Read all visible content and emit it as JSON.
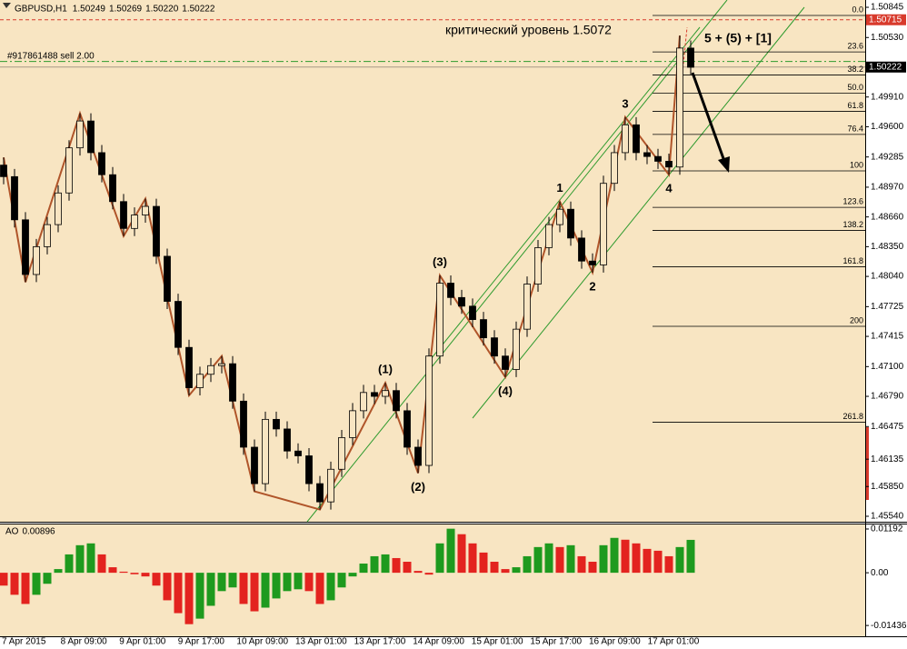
{
  "header": {
    "symbol": "GBPUSD,H1",
    "ohlc": [
      "1.50249",
      "1.50269",
      "1.50220",
      "1.50222"
    ]
  },
  "chart_data": [
    {
      "type": "candlestick",
      "x_labels": [
        "7 Apr 2015",
        "8 Apr 09:00",
        "9 Apr 01:00",
        "9 Apr 17:00",
        "10 Apr 09:00",
        "13 Apr 01:00",
        "13 Apr 17:00",
        "14 Apr 09:00",
        "15 Apr 01:00",
        "15 Apr 17:00",
        "16 Apr 09:00",
        "17 Apr 01:00"
      ],
      "open": [
        1.492,
        1.4908,
        1.4863,
        1.4806,
        1.4835,
        1.4858,
        1.4891,
        1.4938,
        1.4966,
        1.4933,
        1.491,
        1.4882,
        1.4854,
        1.4868,
        1.4877,
        1.4825,
        1.4778,
        1.473,
        1.4688,
        1.4702,
        1.4711,
        1.4713,
        1.4674,
        1.4626,
        1.4588,
        1.4655,
        1.4645,
        1.4622,
        1.4617,
        1.4588,
        1.4569,
        1.4603,
        1.4636,
        1.4664,
        1.4683,
        1.4679,
        1.4685,
        1.4664,
        1.4626,
        1.4607,
        1.4721,
        1.4797,
        1.4782,
        1.4773,
        1.4759,
        1.474,
        1.4721,
        1.4707,
        1.4749,
        1.4796,
        1.4834,
        1.4858,
        1.4874,
        1.4844,
        1.482,
        1.4816,
        1.4901,
        1.4933,
        1.4962,
        1.4933,
        1.4929,
        1.4924,
        1.4918,
        1.5042
      ],
      "high": [
        1.4928,
        1.4916,
        1.4871,
        1.4843,
        1.4866,
        1.4899,
        1.4946,
        1.4974,
        1.4974,
        1.4941,
        1.4918,
        1.489,
        1.4876,
        1.4885,
        1.4885,
        1.4833,
        1.4786,
        1.4738,
        1.471,
        1.4719,
        1.4721,
        1.4721,
        1.4682,
        1.4634,
        1.4663,
        1.4663,
        1.4653,
        1.463,
        1.4625,
        1.4596,
        1.4611,
        1.4644,
        1.4672,
        1.4691,
        1.4691,
        1.4693,
        1.4693,
        1.4672,
        1.4634,
        1.4729,
        1.4805,
        1.4805,
        1.479,
        1.4781,
        1.4767,
        1.4748,
        1.4729,
        1.4757,
        1.4804,
        1.4842,
        1.4866,
        1.4882,
        1.4882,
        1.4852,
        1.4828,
        1.4909,
        1.4941,
        1.497,
        1.497,
        1.4941,
        1.4937,
        1.4932,
        1.5055,
        1.505
      ],
      "low": [
        1.49,
        1.4855,
        1.4798,
        1.4798,
        1.4827,
        1.485,
        1.4883,
        1.493,
        1.4925,
        1.4902,
        1.4874,
        1.4846,
        1.4846,
        1.486,
        1.4817,
        1.477,
        1.4722,
        1.468,
        1.468,
        1.4694,
        1.4703,
        1.4666,
        1.4618,
        1.458,
        1.458,
        1.4637,
        1.4614,
        1.4609,
        1.458,
        1.4561,
        1.4561,
        1.4595,
        1.4628,
        1.4656,
        1.4671,
        1.4671,
        1.4656,
        1.4618,
        1.4599,
        1.4599,
        1.4713,
        1.4774,
        1.4765,
        1.4751,
        1.4732,
        1.4713,
        1.4699,
        1.4699,
        1.4741,
        1.4788,
        1.4826,
        1.485,
        1.4836,
        1.4812,
        1.4808,
        1.4808,
        1.4893,
        1.4925,
        1.4925,
        1.4921,
        1.4916,
        1.491,
        1.491,
        1.5014
      ],
      "close": [
        1.4908,
        1.4863,
        1.4806,
        1.4835,
        1.4858,
        1.4891,
        1.4938,
        1.4966,
        1.4933,
        1.491,
        1.4882,
        1.4854,
        1.4868,
        1.4877,
        1.4825,
        1.4778,
        1.473,
        1.4688,
        1.4702,
        1.4711,
        1.4713,
        1.4674,
        1.4626,
        1.4588,
        1.4655,
        1.4645,
        1.4622,
        1.4617,
        1.4588,
        1.4569,
        1.4603,
        1.4636,
        1.4664,
        1.4683,
        1.4679,
        1.4685,
        1.4664,
        1.4626,
        1.4607,
        1.4721,
        1.4797,
        1.4782,
        1.4773,
        1.4759,
        1.474,
        1.4721,
        1.4707,
        1.4749,
        1.4796,
        1.4834,
        1.4858,
        1.4874,
        1.4844,
        1.482,
        1.4816,
        1.4901,
        1.4933,
        1.4962,
        1.4933,
        1.4929,
        1.4924,
        1.4918,
        1.5042,
        1.5022
      ],
      "up_color": "#f8e5c2",
      "down_color": "#000000",
      "wick_color": "#000000",
      "ylim": [
        1.45483,
        1.50921
      ],
      "yticks": [
        1.50845,
        {
          "value": 1.5053,
          "label": "1.50530"
        },
        {
          "value": 1.4991,
          "label": "1.49910"
        },
        {
          "value": 1.496,
          "label": "1.49600"
        },
        1.49285,
        {
          "value": 1.4897,
          "label": "1.48970"
        },
        {
          "value": 1.4866,
          "label": "1.48660"
        },
        {
          "value": 1.4835,
          "label": "1.48350"
        },
        {
          "value": 1.4804,
          "label": "1.48040"
        },
        1.47725,
        1.47415,
        {
          "value": 1.471,
          "label": "1.47100"
        },
        {
          "value": 1.4679,
          "label": "1.46790"
        },
        1.46475,
        1.46135,
        {
          "value": 1.4585,
          "label": "1.45850"
        },
        {
          "value": 1.4554,
          "label": "1.45540"
        }
      ],
      "zigzag": {
        "color": "#b0552a",
        "bars": [
          0,
          2,
          7,
          11,
          13,
          17,
          20,
          23,
          29,
          35,
          38,
          40,
          46,
          51,
          54,
          57,
          61,
          62
        ],
        "prices": [
          1.4928,
          1.4798,
          1.4974,
          1.4846,
          1.4885,
          1.468,
          1.4721,
          1.458,
          1.4561,
          1.4693,
          1.4599,
          1.4805,
          1.4699,
          1.4882,
          1.4808,
          1.497,
          1.491,
          1.5055
        ]
      },
      "wave_labels": [
        "(1)",
        "(2)",
        "(3)",
        "(4)",
        "1",
        "2",
        "3",
        "4"
      ],
      "fib": {
        "color": "#000000",
        "levels": [
          {
            "label": "0.0",
            "price": 1.5076
          },
          {
            "label": "23.6",
            "price": 1.5038
          },
          {
            "label": "38.2",
            "price": 1.5014
          },
          {
            "label": "50.0",
            "price": 1.4995
          },
          {
            "label": "61.8",
            "price": 1.4976
          },
          {
            "label": "76.4",
            "price": 1.4952
          },
          {
            "label": "100",
            "price": 1.4914
          },
          {
            "label": "123.6",
            "price": 1.4876
          },
          {
            "label": "138.2",
            "price": 1.4852
          },
          {
            "label": "161.8",
            "price": 1.4814
          },
          {
            "label": "200",
            "price": 1.4752
          },
          {
            "label": "261.8",
            "price": 1.4652
          }
        ]
      },
      "levels": [
        {
          "value": 1.50715,
          "color": "#d83a2c"
        },
        {
          "value": 1.50222,
          "color": "#a89a86"
        }
      ],
      "order": {
        "label": "#917861488 sell 2.00",
        "price": 1.5028,
        "color": "#2e9a2e"
      },
      "annotations": [
        "критический уровень 1.5072",
        "5 + (5) + [1]"
      ]
    },
    {
      "type": "histogram",
      "name": "AO",
      "values": [
        -0.0035,
        -0.006,
        -0.0085,
        -0.006,
        -0.003,
        0.001,
        0.005,
        0.0075,
        0.008,
        0.005,
        0.0015,
        0.0003,
        -0.0004,
        -0.001,
        -0.0035,
        -0.0075,
        -0.011,
        -0.014,
        -0.0125,
        -0.009,
        -0.005,
        -0.004,
        -0.0085,
        -0.0105,
        -0.0095,
        -0.007,
        -0.005,
        -0.0045,
        -0.005,
        -0.0085,
        -0.0075,
        -0.004,
        -0.001,
        0.0025,
        0.0045,
        0.005,
        0.004,
        0.003,
        0.0005,
        -0.0005,
        0.008,
        0.012,
        0.0105,
        0.008,
        0.0055,
        0.003,
        0.001,
        0.0015,
        0.0045,
        0.007,
        0.008,
        0.007,
        0.0075,
        0.0045,
        0.003,
        0.0075,
        0.0095,
        0.009,
        0.008,
        0.0065,
        0.006,
        0.0045,
        0.007,
        0.00896
      ],
      "up_color": "#1e9a1e",
      "down_color": "#e3231f",
      "ylim": [
        -0.0173,
        0.0134
      ],
      "yticks": [
        0.01192,
        {
          "value": 0,
          "label": "0.00"
        },
        -0.01436
      ]
    }
  ]
}
